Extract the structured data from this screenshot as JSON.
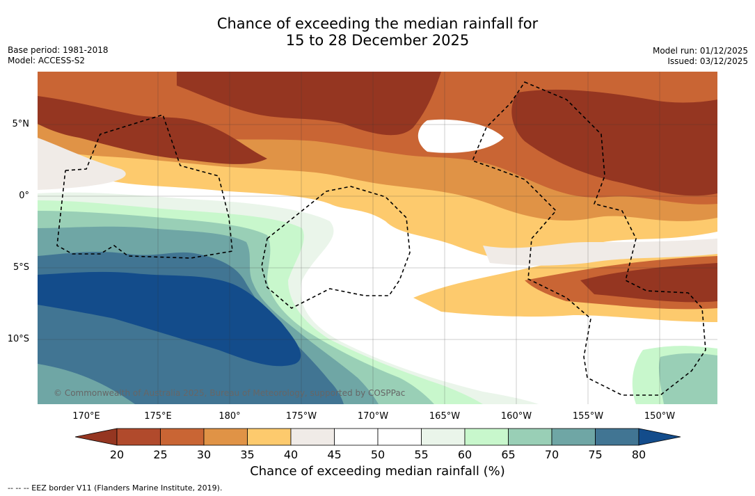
{
  "title": {
    "line1": "Chance of exceeding the median rainfall for",
    "line2": "15 to 28 December 2025"
  },
  "meta_left": {
    "base_period": "Base period: 1981-2018",
    "model": "Model: ACCESS-S2"
  },
  "meta_right": {
    "model_run": "Model run: 01/12/2025",
    "issued": "Issued: 03/12/2025"
  },
  "map": {
    "copyright": "© Commonwealth of Australia 2025, Bureau of Meteorology, supported by COSPPac",
    "lon_labels": [
      "170°E",
      "175°E",
      "180°",
      "175°W",
      "170°W",
      "165°W",
      "160°W",
      "155°W",
      "150°W"
    ],
    "lat_labels": [
      "5°N",
      "0°",
      "5°S",
      "10°S"
    ]
  },
  "colorbar": {
    "ticks": [
      "20",
      "25",
      "30",
      "35",
      "40",
      "45",
      "50",
      "55",
      "60",
      "65",
      "70",
      "75",
      "80"
    ],
    "colors": [
      "#953621",
      "#b14a2c",
      "#c96534",
      "#e09346",
      "#fdca6d",
      "#f0ebe7",
      "#ffffff",
      "#ffffff",
      "#eaf5ea",
      "#c8f7cc",
      "#99cfb6",
      "#6fa6a5",
      "#417593",
      "#134c8b"
    ],
    "label": "Chance of exceeding median rainfall (%)"
  },
  "footer": "--  --  -- EEZ border V11 (Flanders Marine Institute, 2019)."
}
